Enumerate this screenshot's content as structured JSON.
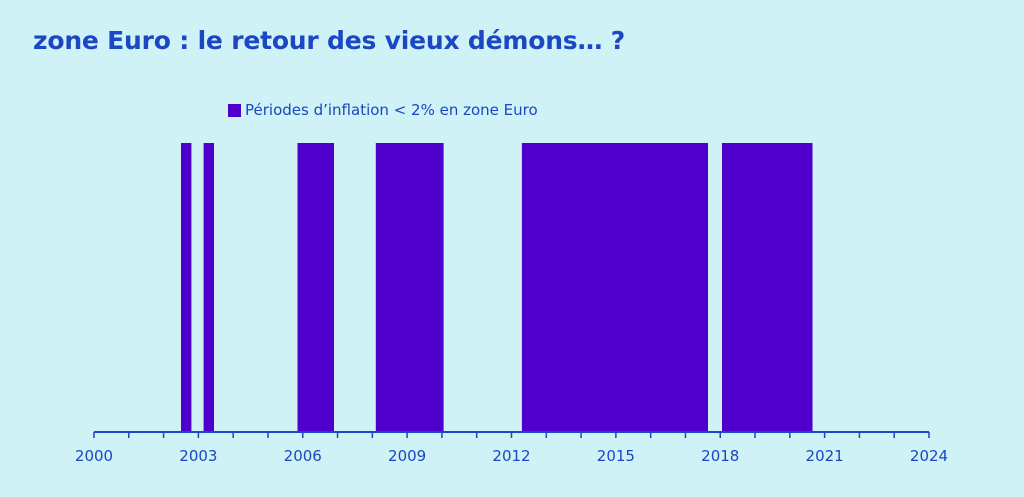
{
  "title": "zone Euro : le retour des vieux démons… ?",
  "colors": {
    "background": "#cef2f5",
    "bar": "#5000cc",
    "text": "#1b46c4",
    "axis": "#1b46c4"
  },
  "chart_data": {
    "type": "bar",
    "legend": {
      "label": "Périodes d’inflation < 2% en zone Euro",
      "position": "top"
    },
    "x_unit": "year",
    "xlim": [
      2000,
      2024
    ],
    "xticks": [
      2000,
      2003,
      2006,
      2009,
      2012,
      2015,
      2018,
      2021,
      2024
    ],
    "xtick_labels": [
      "2000",
      "2003",
      "2006",
      "2009",
      "2012",
      "2015",
      "2018",
      "2021",
      "2024"
    ],
    "minor_tick_step": 1,
    "periods": [
      {
        "start": 2002.5,
        "end": 2002.8
      },
      {
        "start": 2003.15,
        "end": 2003.45
      },
      {
        "start": 2005.85,
        "end": 2006.9
      },
      {
        "start": 2008.1,
        "end": 2010.05
      },
      {
        "start": 2012.3,
        "end": 2017.65
      },
      {
        "start": 2018.05,
        "end": 2020.65
      }
    ],
    "grid": false
  }
}
